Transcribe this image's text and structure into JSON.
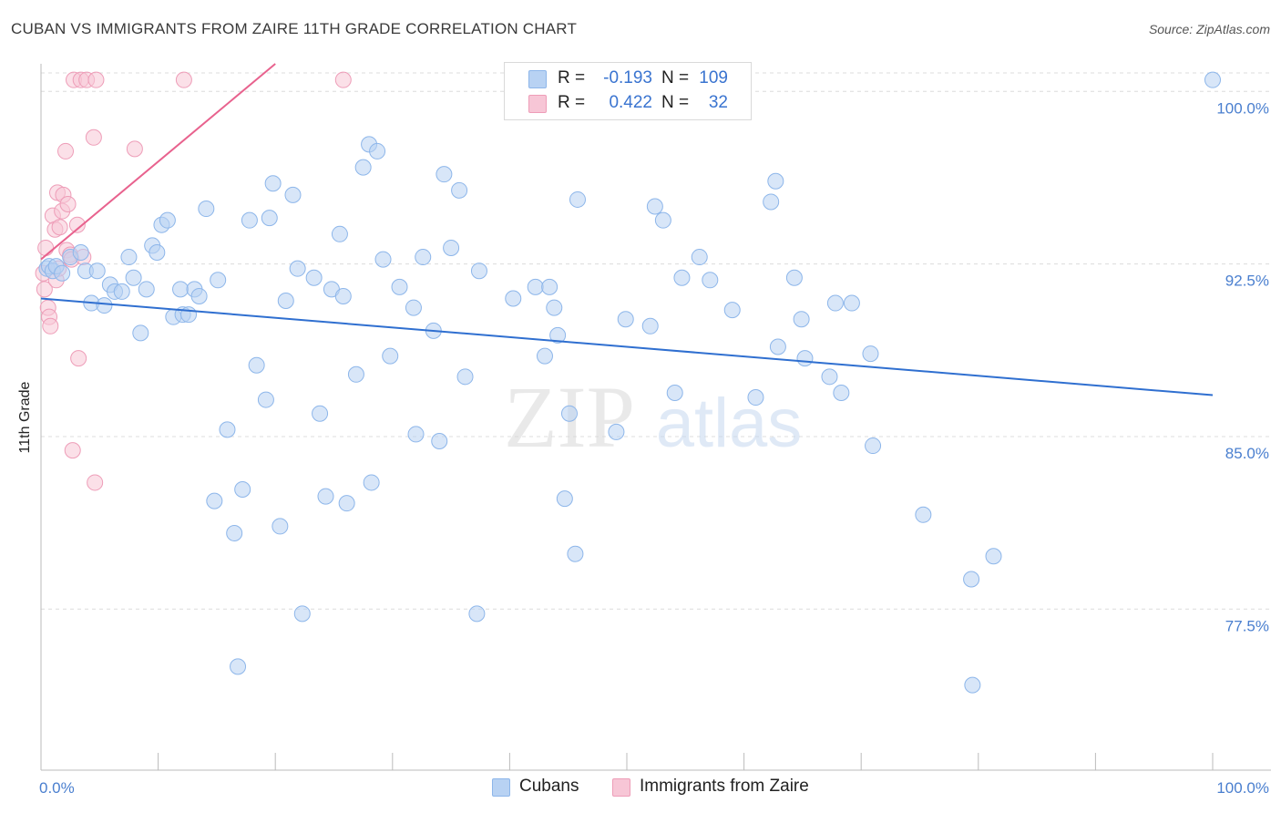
{
  "title": "CUBAN VS IMMIGRANTS FROM ZAIRE 11TH GRADE CORRELATION CHART",
  "source": "Source: ZipAtlas.com",
  "watermark": {
    "zip": "ZIP",
    "atlas": "atlas"
  },
  "colors": {
    "blue_fill": "#b8d2f3",
    "blue_stroke": "#8db6ea",
    "blue_line": "#2f6fd0",
    "pink_fill": "#f7c6d6",
    "pink_stroke": "#ee9db8",
    "pink_line": "#e8628e",
    "grid": "#dcdcdc",
    "axis_text": "#4a7fcf"
  },
  "legend_top": {
    "rows": [
      {
        "r_label": "R =",
        "r_value": "-0.193",
        "n_label": "N =",
        "n_value": "109"
      },
      {
        "r_label": "R =",
        "r_value": "0.422",
        "n_label": "N =",
        "n_value": "32"
      }
    ]
  },
  "legend_bottom": [
    "Cubans",
    "Immigrants from Zaire"
  ],
  "chart_data": {
    "type": "scatter",
    "title": "CUBAN VS IMMIGRANTS FROM ZAIRE 11TH GRADE CORRELATION CHART",
    "xlabel": "",
    "ylabel": "11th Grade",
    "xlim": [
      0,
      100
    ],
    "ylim": [
      70.5,
      101.2
    ],
    "x_tick_labels": [
      "0.0%",
      "100.0%"
    ],
    "y_ticks": [
      77.5,
      85.0,
      92.5,
      100.0
    ],
    "y_tick_labels": [
      "77.5%",
      "85.0%",
      "92.5%",
      "100.0%"
    ],
    "grid": true,
    "legend": "bottom-center",
    "series": [
      {
        "name": "Cubans",
        "R": -0.193,
        "N": 109,
        "trend": {
          "x": [
            0,
            100
          ],
          "y": [
            91.0,
            86.8
          ]
        },
        "points": [
          {
            "x": 0.5,
            "y": 92.3
          },
          {
            "x": 0.7,
            "y": 92.4
          },
          {
            "x": 1.0,
            "y": 92.2
          },
          {
            "x": 1.3,
            "y": 92.4
          },
          {
            "x": 1.8,
            "y": 92.1
          },
          {
            "x": 2.5,
            "y": 92.8
          },
          {
            "x": 3.4,
            "y": 93.0
          },
          {
            "x": 3.8,
            "y": 92.2
          },
          {
            "x": 4.3,
            "y": 90.8
          },
          {
            "x": 4.8,
            "y": 92.2
          },
          {
            "x": 5.4,
            "y": 90.7
          },
          {
            "x": 5.9,
            "y": 91.6
          },
          {
            "x": 6.3,
            "y": 91.3
          },
          {
            "x": 6.9,
            "y": 91.3
          },
          {
            "x": 7.5,
            "y": 92.8
          },
          {
            "x": 7.9,
            "y": 91.9
          },
          {
            "x": 8.5,
            "y": 89.5
          },
          {
            "x": 9.0,
            "y": 91.4
          },
          {
            "x": 9.5,
            "y": 93.3
          },
          {
            "x": 9.9,
            "y": 93.0
          },
          {
            "x": 10.3,
            "y": 94.2
          },
          {
            "x": 10.8,
            "y": 94.4
          },
          {
            "x": 11.3,
            "y": 90.2
          },
          {
            "x": 11.9,
            "y": 91.4
          },
          {
            "x": 12.1,
            "y": 90.3
          },
          {
            "x": 12.6,
            "y": 90.3
          },
          {
            "x": 13.1,
            "y": 91.4
          },
          {
            "x": 13.5,
            "y": 91.1
          },
          {
            "x": 14.1,
            "y": 94.9
          },
          {
            "x": 15.1,
            "y": 91.8
          },
          {
            "x": 15.9,
            "y": 85.3
          },
          {
            "x": 14.8,
            "y": 82.2
          },
          {
            "x": 16.5,
            "y": 80.8
          },
          {
            "x": 16.8,
            "y": 75.0
          },
          {
            "x": 17.2,
            "y": 82.7
          },
          {
            "x": 17.8,
            "y": 94.4
          },
          {
            "x": 18.4,
            "y": 88.1
          },
          {
            "x": 19.2,
            "y": 86.6
          },
          {
            "x": 19.5,
            "y": 94.5
          },
          {
            "x": 19.8,
            "y": 96.0
          },
          {
            "x": 20.4,
            "y": 81.1
          },
          {
            "x": 20.9,
            "y": 90.9
          },
          {
            "x": 21.5,
            "y": 95.5
          },
          {
            "x": 21.9,
            "y": 92.3
          },
          {
            "x": 22.3,
            "y": 77.3
          },
          {
            "x": 23.3,
            "y": 91.9
          },
          {
            "x": 23.8,
            "y": 86.0
          },
          {
            "x": 24.3,
            "y": 82.4
          },
          {
            "x": 24.8,
            "y": 91.4
          },
          {
            "x": 25.5,
            "y": 93.8
          },
          {
            "x": 25.8,
            "y": 91.1
          },
          {
            "x": 26.1,
            "y": 82.1
          },
          {
            "x": 26.9,
            "y": 87.7
          },
          {
            "x": 27.5,
            "y": 96.7
          },
          {
            "x": 28.0,
            "y": 97.7
          },
          {
            "x": 28.2,
            "y": 83.0
          },
          {
            "x": 28.7,
            "y": 97.4
          },
          {
            "x": 29.2,
            "y": 92.7
          },
          {
            "x": 29.8,
            "y": 88.5
          },
          {
            "x": 30.6,
            "y": 91.5
          },
          {
            "x": 31.8,
            "y": 90.6
          },
          {
            "x": 32.0,
            "y": 85.1
          },
          {
            "x": 32.6,
            "y": 92.8
          },
          {
            "x": 33.5,
            "y": 89.6
          },
          {
            "x": 34.0,
            "y": 84.8
          },
          {
            "x": 34.4,
            "y": 96.4
          },
          {
            "x": 35.0,
            "y": 93.2
          },
          {
            "x": 35.7,
            "y": 95.7
          },
          {
            "x": 36.2,
            "y": 87.6
          },
          {
            "x": 37.2,
            "y": 77.3
          },
          {
            "x": 37.4,
            "y": 92.2
          },
          {
            "x": 40.3,
            "y": 91.0
          },
          {
            "x": 42.2,
            "y": 91.5
          },
          {
            "x": 43.0,
            "y": 88.5
          },
          {
            "x": 43.4,
            "y": 91.5
          },
          {
            "x": 43.8,
            "y": 90.6
          },
          {
            "x": 44.1,
            "y": 89.4
          },
          {
            "x": 44.7,
            "y": 82.3
          },
          {
            "x": 45.1,
            "y": 86.0
          },
          {
            "x": 45.6,
            "y": 79.9
          },
          {
            "x": 45.8,
            "y": 95.3
          },
          {
            "x": 49.1,
            "y": 85.2
          },
          {
            "x": 49.9,
            "y": 90.1
          },
          {
            "x": 52.0,
            "y": 89.8
          },
          {
            "x": 52.4,
            "y": 95.0
          },
          {
            "x": 53.1,
            "y": 94.4
          },
          {
            "x": 54.1,
            "y": 86.9
          },
          {
            "x": 54.7,
            "y": 91.9
          },
          {
            "x": 56.2,
            "y": 92.8
          },
          {
            "x": 57.1,
            "y": 91.8
          },
          {
            "x": 59.0,
            "y": 90.5
          },
          {
            "x": 61.0,
            "y": 86.7
          },
          {
            "x": 62.3,
            "y": 95.2
          },
          {
            "x": 62.7,
            "y": 96.1
          },
          {
            "x": 62.9,
            "y": 88.9
          },
          {
            "x": 64.3,
            "y": 91.9
          },
          {
            "x": 64.9,
            "y": 90.1
          },
          {
            "x": 65.2,
            "y": 88.4
          },
          {
            "x": 67.3,
            "y": 87.6
          },
          {
            "x": 67.8,
            "y": 90.8
          },
          {
            "x": 68.3,
            "y": 86.9
          },
          {
            "x": 69.2,
            "y": 90.8
          },
          {
            "x": 70.8,
            "y": 88.6
          },
          {
            "x": 71.0,
            "y": 84.6
          },
          {
            "x": 75.3,
            "y": 81.6
          },
          {
            "x": 79.4,
            "y": 78.8
          },
          {
            "x": 79.5,
            "y": 74.2
          },
          {
            "x": 81.3,
            "y": 79.8
          },
          {
            "x": 100.0,
            "y": 100.5
          }
        ]
      },
      {
        "name": "Immigrants from Zaire",
        "R": 0.422,
        "N": 32,
        "trend": {
          "x": [
            0,
            20
          ],
          "y": [
            92.7,
            101.2
          ]
        },
        "points": [
          {
            "x": 0.2,
            "y": 92.1
          },
          {
            "x": 0.3,
            "y": 91.4
          },
          {
            "x": 0.4,
            "y": 93.2
          },
          {
            "x": 0.6,
            "y": 90.6
          },
          {
            "x": 0.7,
            "y": 90.2
          },
          {
            "x": 0.8,
            "y": 89.8
          },
          {
            "x": 1.0,
            "y": 94.6
          },
          {
            "x": 1.2,
            "y": 94.0
          },
          {
            "x": 1.3,
            "y": 91.8
          },
          {
            "x": 1.4,
            "y": 95.6
          },
          {
            "x": 1.5,
            "y": 92.3
          },
          {
            "x": 1.6,
            "y": 94.1
          },
          {
            "x": 1.8,
            "y": 94.8
          },
          {
            "x": 1.9,
            "y": 95.5
          },
          {
            "x": 2.1,
            "y": 97.4
          },
          {
            "x": 2.2,
            "y": 93.1
          },
          {
            "x": 2.3,
            "y": 95.1
          },
          {
            "x": 2.5,
            "y": 92.9
          },
          {
            "x": 2.6,
            "y": 92.7
          },
          {
            "x": 2.7,
            "y": 84.4
          },
          {
            "x": 2.8,
            "y": 100.5
          },
          {
            "x": 3.1,
            "y": 94.2
          },
          {
            "x": 3.2,
            "y": 88.4
          },
          {
            "x": 3.4,
            "y": 100.5
          },
          {
            "x": 3.6,
            "y": 92.8
          },
          {
            "x": 3.9,
            "y": 100.5
          },
          {
            "x": 4.6,
            "y": 83.0
          },
          {
            "x": 4.5,
            "y": 98.0
          },
          {
            "x": 4.7,
            "y": 100.5
          },
          {
            "x": 8.0,
            "y": 97.5
          },
          {
            "x": 12.2,
            "y": 100.5
          },
          {
            "x": 25.8,
            "y": 100.5
          }
        ]
      }
    ]
  }
}
